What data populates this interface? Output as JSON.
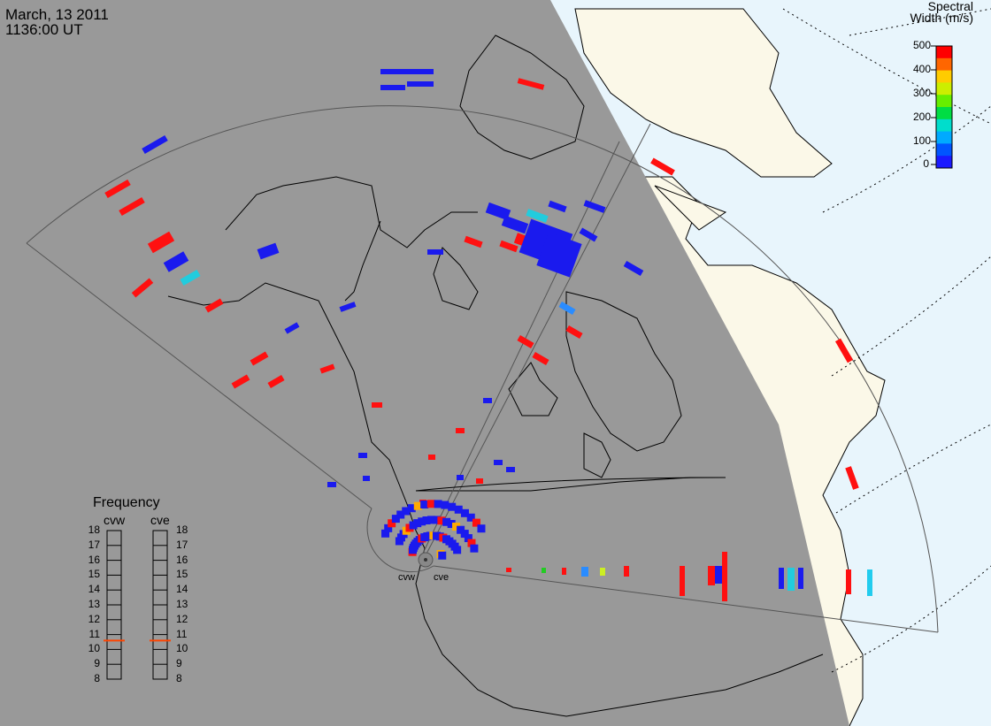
{
  "header": {
    "date": "March, 13 2011",
    "time": "1136:00 UT"
  },
  "colorbar": {
    "title_line1": "Spectral",
    "title_line2": "Width (m/s)",
    "ticks": [
      "500",
      "400",
      "300",
      "200",
      "100",
      "0"
    ],
    "colors": [
      "#ff0000",
      "#ff6600",
      "#ffcc00",
      "#ccee00",
      "#66ee00",
      "#00dd44",
      "#00ddcc",
      "#00aaff",
      "#0055ff",
      "#1a1aff"
    ]
  },
  "frequency_panel": {
    "title": "Frequency",
    "radars": [
      "cvw",
      "cve"
    ],
    "ticks": [
      "18",
      "17",
      "16",
      "15",
      "14",
      "13",
      "12",
      "11",
      "10",
      "9",
      "8"
    ],
    "cvw_frequency_mhz": 10.6,
    "cve_frequency_mhz": 10.6,
    "marker_color": "#ff4400"
  },
  "sites": [
    "cvw",
    "cve"
  ],
  "colors": {
    "night": "#999999",
    "day_land": "#fbf8e8",
    "day_ocean": "#e8f5fc"
  }
}
